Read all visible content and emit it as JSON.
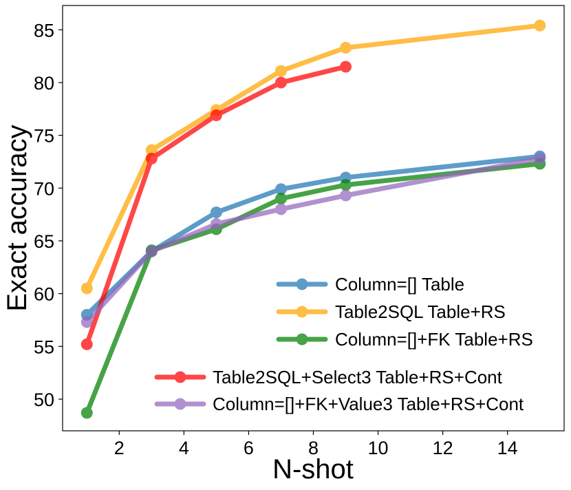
{
  "chart_data": {
    "type": "line",
    "title": "",
    "xlabel": "N-shot",
    "ylabel": "Exact accuracy",
    "xlim": [
      0.25,
      15.75
    ],
    "ylim": [
      47,
      87.3
    ],
    "x_ticks": [
      2,
      4,
      6,
      8,
      10,
      12,
      14
    ],
    "y_ticks": [
      50,
      55,
      60,
      65,
      70,
      75,
      80,
      85
    ],
    "grid": false,
    "series": [
      {
        "name": "Column=[] Table",
        "color": "#1f77b4",
        "x": [
          1,
          3,
          5,
          7,
          9,
          15
        ],
        "y": [
          58.0,
          64.0,
          67.7,
          69.9,
          71.0,
          73.0
        ]
      },
      {
        "name": "Table2SQL Table+RS",
        "color": "#ffa500",
        "x": [
          1,
          3,
          5,
          7,
          9,
          15
        ],
        "y": [
          60.5,
          73.6,
          77.4,
          81.1,
          83.3,
          85.4
        ]
      },
      {
        "name": "Column=[]+FK Table+RS",
        "color": "#008000",
        "x": [
          1,
          3,
          5,
          7,
          9,
          15
        ],
        "y": [
          48.7,
          64.1,
          66.1,
          69.0,
          70.3,
          72.3
        ]
      },
      {
        "name": "Table2SQL+Select3 Table+RS+Cont",
        "color": "#ff0000",
        "x": [
          1,
          3,
          5,
          7,
          9
        ],
        "y": [
          55.2,
          72.8,
          76.9,
          80.0,
          81.5
        ]
      },
      {
        "name": "Column=[]+FK+Value3 Table+RS+Cont",
        "color": "#9467bd",
        "x": [
          1,
          3,
          5,
          7,
          9,
          15
        ],
        "y": [
          57.3,
          64.0,
          66.6,
          68.0,
          69.3,
          72.8
        ]
      }
    ],
    "legend_groups": [
      {
        "placement": "lower-right-upper",
        "entries": [
          0,
          1,
          2
        ]
      },
      {
        "placement": "lower-right",
        "entries": [
          3,
          4
        ]
      }
    ]
  }
}
